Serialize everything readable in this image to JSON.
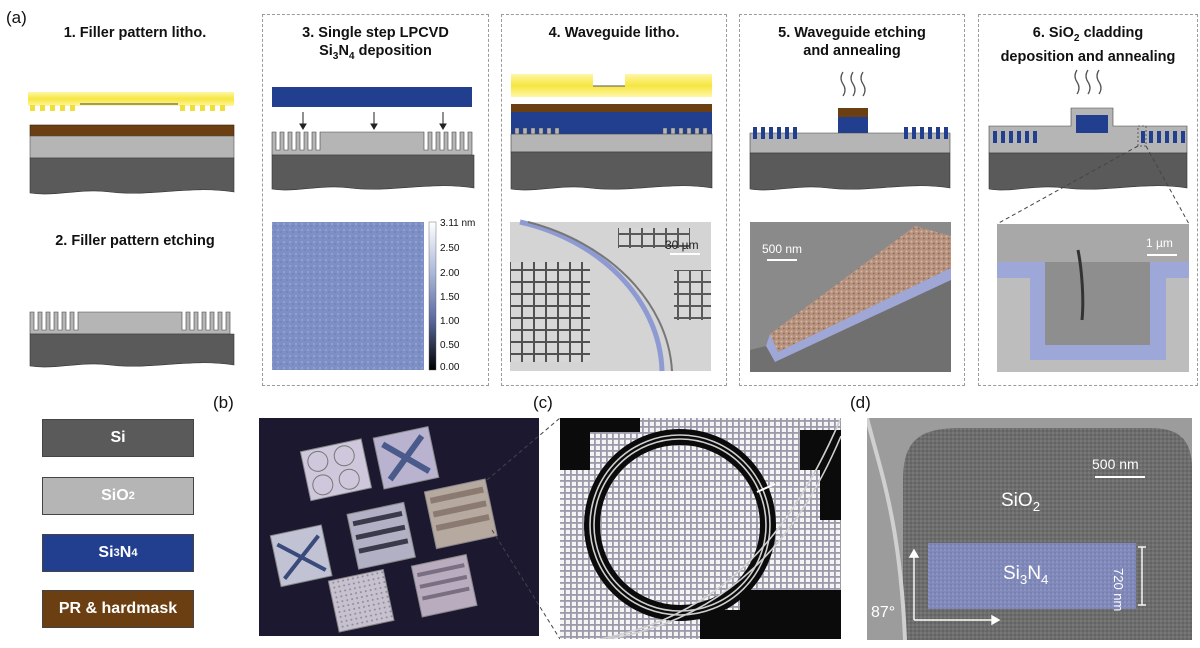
{
  "panel_labels": {
    "a": "(a)",
    "b": "(b)",
    "c": "(c)",
    "d": "(d)"
  },
  "steps": {
    "s1": "1. Filler pattern litho.",
    "s2": "2. Filler pattern etching",
    "s3_line1": "3. Single step LPCVD",
    "s3_line2_pre": "Si",
    "s3_line2_sub1": "3",
    "s3_line2_mid": "N",
    "s3_line2_sub2": "4",
    "s3_line2_post": " deposition",
    "s4": "4. Waveguide litho.",
    "s5_line1": "5. Waveguide etching",
    "s5_line2": "and annealing",
    "s6_line1_pre": "6. SiO",
    "s6_line1_sub": "2",
    "s6_line1_post": " cladding",
    "s6_line2": "deposition and annealing"
  },
  "colorbar": {
    "ticks": [
      "3.11 nm",
      "2.50",
      "2.00",
      "1.50",
      "1.00",
      "0.50",
      "0.00"
    ]
  },
  "scalebars": {
    "s4": "30 µm",
    "s5": "500 nm",
    "s6": "1 µm",
    "d": "500 nm"
  },
  "legend": {
    "si": "Si",
    "sio2_pre": "SiO",
    "sio2_sub": "2",
    "si3n4_pre": "Si",
    "si3n4_sub1": "3",
    "si3n4_mid": "N",
    "si3n4_sub2": "4",
    "pr": "PR & hardmask"
  },
  "panel_d": {
    "sio2_pre": "SiO",
    "sio2_sub": "2",
    "si3n4_pre": "Si",
    "si3n4_sub1": "3",
    "si3n4_mid": "N",
    "si3n4_sub2": "4",
    "height": "720 nm",
    "angle": "87°"
  },
  "colors": {
    "si": "#5a5a5a",
    "sio2": "#b5b5b5",
    "si3n4": "#223f8f",
    "pr": "#6b3f12",
    "photoresist": "#f5e84a"
  }
}
